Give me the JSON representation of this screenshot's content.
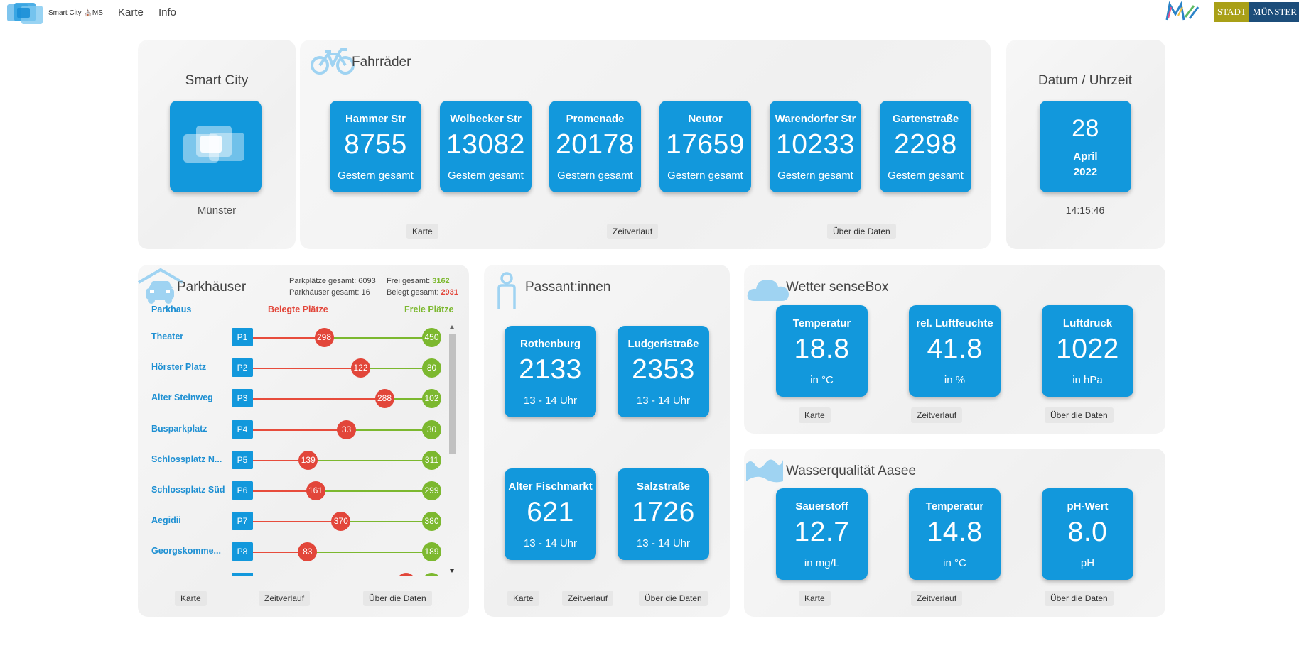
{
  "nav": {
    "logo_text": "Smart City ⛪MS",
    "karte": "Karte",
    "info": "Info",
    "stadt_left": "STADT",
    "stadt_right": "MÜNSTER"
  },
  "smartcity": {
    "title": "Smart City",
    "city": "Münster"
  },
  "bikes": {
    "title": "Fahrräder",
    "tiles": [
      {
        "label": "Hammer Str",
        "value": "8755",
        "unit": "Gestern gesamt"
      },
      {
        "label": "Wolbecker Str",
        "value": "13082",
        "unit": "Gestern gesamt"
      },
      {
        "label": "Promenade",
        "value": "20178",
        "unit": "Gestern gesamt"
      },
      {
        "label": "Neutor",
        "value": "17659",
        "unit": "Gestern gesamt"
      },
      {
        "label": "Warendorfer Str",
        "value": "10233",
        "unit": "Gestern gesamt"
      },
      {
        "label": "Gartenstraße",
        "value": "2298",
        "unit": "Gestern gesamt"
      }
    ],
    "btn_map": "Karte",
    "btn_time": "Zeitverlauf",
    "btn_about": "Über die Daten"
  },
  "datetime": {
    "title": "Datum / Uhrzeit",
    "day": "28",
    "month": "April",
    "year": "2022",
    "time": "14:15:46"
  },
  "parking": {
    "title": "Parkhäuser",
    "stat_total_label": "Parkplätze gesamt:",
    "stat_total": "6093",
    "stat_houses_label": "Parkhäuser gesamt:",
    "stat_houses": "16",
    "stat_free_label": "Frei gesamt:",
    "stat_free": "3162",
    "stat_occ_label": "Belegt gesamt:",
    "stat_occ": "2931",
    "col_name": "Parkhaus",
    "col_occ": "Belegte Plätze",
    "col_free": "Freie Plätze",
    "rows": [
      {
        "name": "Theater",
        "badge": "P1",
        "occupied": "298",
        "free": "450",
        "occ_frac": 0.398
      },
      {
        "name": "Hörster Platz",
        "badge": "P2",
        "occupied": "122",
        "free": "80",
        "occ_frac": 0.604
      },
      {
        "name": "Alter Steinweg",
        "badge": "P3",
        "occupied": "288",
        "free": "102",
        "occ_frac": 0.738
      },
      {
        "name": "Busparkplatz",
        "badge": "P4",
        "occupied": "33",
        "free": "30",
        "occ_frac": 0.524
      },
      {
        "name": "Schlossplatz N...",
        "badge": "P5",
        "occupied": "139",
        "free": "311",
        "occ_frac": 0.309
      },
      {
        "name": "Schlossplatz Süd",
        "badge": "P6",
        "occupied": "161",
        "free": "299",
        "occ_frac": 0.35
      },
      {
        "name": "Aegidii",
        "badge": "P7",
        "occupied": "370",
        "free": "380",
        "occ_frac": 0.493
      },
      {
        "name": "Georgskomme...",
        "badge": "P8",
        "occupied": "83",
        "free": "189",
        "occ_frac": 0.305
      }
    ],
    "btn_map": "Karte",
    "btn_time": "Zeitverlauf",
    "btn_about": "Über die Daten"
  },
  "pedestrians": {
    "title": "Passant:innen",
    "tiles": [
      {
        "label": "Rothenburg",
        "value": "2133",
        "unit": "13 - 14 Uhr"
      },
      {
        "label": "Ludgeristraße",
        "value": "2353",
        "unit": "13 - 14 Uhr"
      },
      {
        "label": "Alter Fischmarkt",
        "value": "621",
        "unit": "13 - 14 Uhr"
      },
      {
        "label": "Salzstraße",
        "value": "1726",
        "unit": "13 - 14 Uhr"
      }
    ],
    "btn_map": "Karte",
    "btn_time": "Zeitverlauf",
    "btn_about": "Über die Daten"
  },
  "weather": {
    "title": "Wetter senseBox",
    "tiles": [
      {
        "label": "Temperatur",
        "value": "18.8",
        "unit": "in °C"
      },
      {
        "label": "rel. Luftfeuchte",
        "value": "41.8",
        "unit": "in %"
      },
      {
        "label": "Luftdruck",
        "value": "1022",
        "unit": "in hPa"
      }
    ],
    "btn_map": "Karte",
    "btn_time": "Zeitverlauf",
    "btn_about": "Über die Daten"
  },
  "water": {
    "title": "Wasserqualität Aasee",
    "tiles": [
      {
        "label": "Sauerstoff",
        "value": "12.7",
        "unit": "in mg/L"
      },
      {
        "label": "Temperatur",
        "value": "14.8",
        "unit": "in °C"
      },
      {
        "label": "pH-Wert",
        "value": "8.0",
        "unit": "pH"
      }
    ],
    "btn_map": "Karte",
    "btn_time": "Zeitverlauf",
    "btn_about": "Über die Daten"
  },
  "colors": {
    "tile": "#1298dc",
    "occupied": "#e2463a",
    "free": "#7cb82f",
    "link": "#1d8fd2"
  }
}
